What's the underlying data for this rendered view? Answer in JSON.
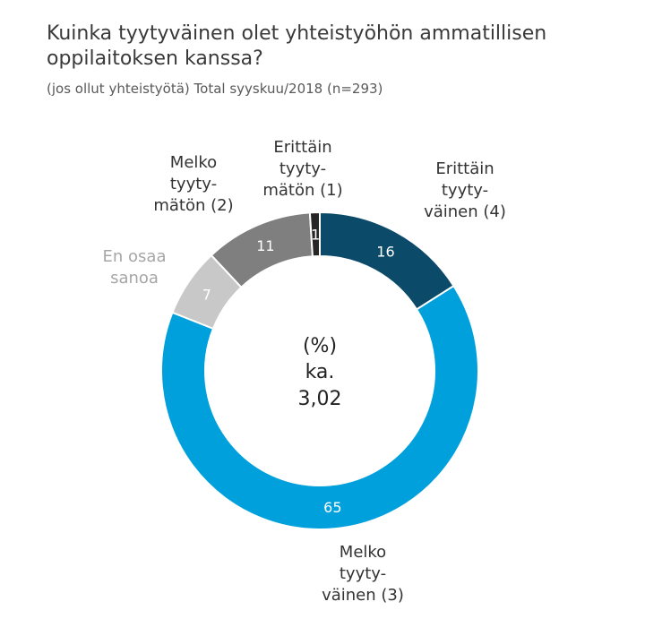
{
  "title": "Kuinka tyytyväinen olet yhteistyöhön ammatillisen oppilaitoksen kanssa?",
  "subtitle": "(jos ollut yhteistyötä) Total syyskuu/2018 (n=293)",
  "center": {
    "line1": "(%)",
    "line2": "ka.",
    "line3": "3,02"
  },
  "chart_data": {
    "type": "pie",
    "donut": true,
    "unit": "%",
    "mean_label": "ka.",
    "mean_value": 3.02,
    "slices": [
      {
        "name": "Erittäin tyytyväinen (4)",
        "label_lines": [
          "Erittäin",
          "tyyty-",
          "väinen (4)"
        ],
        "value": 16,
        "color": "#0b4a69",
        "label_color": "#333333"
      },
      {
        "name": "Melko tyytyväinen (3)",
        "label_lines": [
          "Melko",
          "tyyty-",
          "väinen (3)"
        ],
        "value": 65,
        "color": "#00a0dc",
        "label_color": "#333333"
      },
      {
        "name": "En osaa sanoa",
        "label_lines": [
          "En osaa",
          "sanoa"
        ],
        "value": 7,
        "color": "#c8c8c8",
        "label_color": "#a6a6a6"
      },
      {
        "name": "Melko tyytymätön (2)",
        "label_lines": [
          "Melko",
          "tyyty-",
          "mätön (2)"
        ],
        "value": 11,
        "color": "#7f7f7f",
        "label_color": "#333333"
      },
      {
        "name": "Erittäin tyytymätön (1)",
        "label_lines": [
          "Erittäin",
          "tyyty-",
          "mätön (1)"
        ],
        "value": 1,
        "color": "#262626",
        "label_color": "#333333"
      }
    ]
  }
}
